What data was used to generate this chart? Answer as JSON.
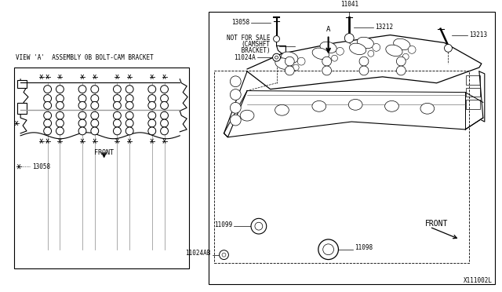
{
  "bg_color": "#ffffff",
  "line_color": "#000000",
  "gray_line_color": "#999999",
  "fig_width": 6.4,
  "fig_height": 3.72,
  "dpi": 100,
  "title": "VIEW 'A'  ASSEMBLY 0B BOLT-CAM BRACKET",
  "label_11041": "11041",
  "label_13058": "13058",
  "label_13212": "13212",
  "label_13213": "13213",
  "label_nfs1": "NOT FOR SALE",
  "label_nfs2": "(CAMSHFT",
  "label_nfs3": " BRACKET)",
  "label_11024A": "11024A",
  "label_11099": "11099",
  "label_11098": "11098",
  "label_11024AB": "11024AB",
  "label_front": "FRONT",
  "label_A": "A",
  "bottom_ref": "X111002L",
  "legend_text": "☆ ....  13058",
  "font_size": 5.5,
  "font_size_label": 6.0
}
